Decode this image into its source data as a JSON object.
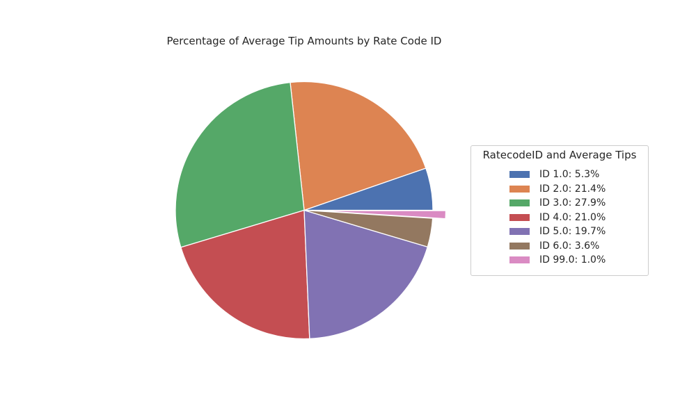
{
  "chart_data": {
    "type": "pie",
    "title": "Percentage of Average Tip Amounts by Rate Code ID",
    "legend_title": "RatecodeID and Average Tips",
    "legend_position": "right",
    "slices": [
      {
        "label": "ID 1.0: 5.3%",
        "value": 5.3,
        "color": "#4c72b0",
        "explode": false
      },
      {
        "label": "ID 2.0: 21.4%",
        "value": 21.4,
        "color": "#dd8452",
        "explode": false
      },
      {
        "label": "ID 3.0: 27.9%",
        "value": 27.9,
        "color": "#55a868",
        "explode": false
      },
      {
        "label": "ID 4.0: 21.0%",
        "value": 21.0,
        "color": "#c44e52",
        "explode": false
      },
      {
        "label": "ID 5.0: 19.7%",
        "value": 19.7,
        "color": "#8172b3",
        "explode": false
      },
      {
        "label": "ID 6.0: 3.6%",
        "value": 3.6,
        "color": "#937860",
        "explode": false
      },
      {
        "label": "ID 99.0: 1.0%",
        "value": 1.0,
        "color": "#da8bc3",
        "explode": true
      }
    ]
  }
}
